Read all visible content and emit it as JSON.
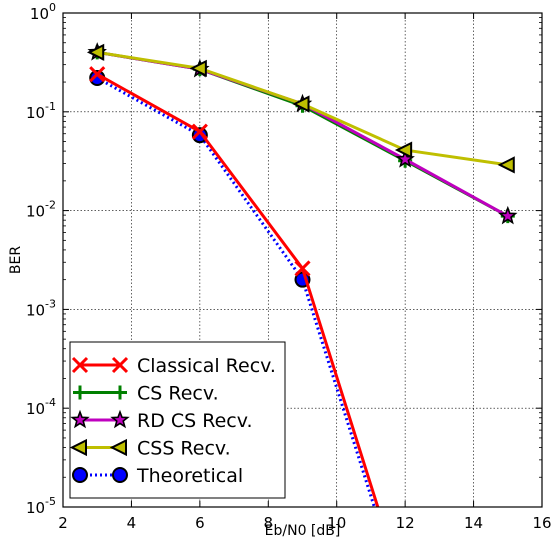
{
  "chart_data": {
    "type": "line",
    "title": "",
    "xlabel": "Eb/N0 [dB]",
    "ylabel": "BER",
    "xscale": "linear",
    "yscale": "log",
    "xlim": [
      2,
      16
    ],
    "ylim": [
      1e-05,
      1
    ],
    "xticks": [
      2,
      4,
      6,
      8,
      10,
      12,
      14,
      16
    ],
    "yticks": [
      {
        "value": 1,
        "base": "10",
        "exp": "0"
      },
      {
        "value": 0.1,
        "base": "10",
        "exp": "-1"
      },
      {
        "value": 0.01,
        "base": "10",
        "exp": "-2"
      },
      {
        "value": 0.001,
        "base": "10",
        "exp": "-3"
      },
      {
        "value": 0.0001,
        "base": "10",
        "exp": "-4"
      },
      {
        "value": 1e-05,
        "base": "10",
        "exp": "-5"
      }
    ],
    "grid": true,
    "legend_position": "bottom-left",
    "series": [
      {
        "name": "Classical Recv.",
        "color": "#ff0000",
        "linestyle": "solid",
        "marker": "x",
        "x": [
          3,
          6,
          9,
          11.2
        ],
        "y": [
          0.24,
          0.063,
          0.0026,
          1e-05
        ]
      },
      {
        "name": "CS Recv.",
        "color": "#008000",
        "linestyle": "solid",
        "marker": "plus",
        "x": [
          3,
          6,
          9,
          12,
          15
        ],
        "y": [
          0.4,
          0.27,
          0.115,
          0.032,
          0.0088
        ]
      },
      {
        "name": "RD CS Recv.",
        "color": "#bf00bf",
        "linestyle": "solid",
        "marker": "star",
        "x": [
          3,
          6,
          9,
          12,
          15
        ],
        "y": [
          0.4,
          0.27,
          0.12,
          0.033,
          0.0088
        ]
      },
      {
        "name": "CSS Recv.",
        "color": "#bfbf00",
        "linestyle": "solid",
        "marker": "triangle-left",
        "x": [
          3,
          6,
          9,
          12,
          15
        ],
        "y": [
          0.4,
          0.275,
          0.12,
          0.041,
          0.029
        ]
      },
      {
        "name": "Theoretical",
        "color": "#0000ff",
        "linestyle": "dotted",
        "marker": "circle",
        "x": [
          3,
          6,
          9,
          11.1
        ],
        "y": [
          0.22,
          0.058,
          0.002,
          1e-05
        ]
      }
    ]
  }
}
